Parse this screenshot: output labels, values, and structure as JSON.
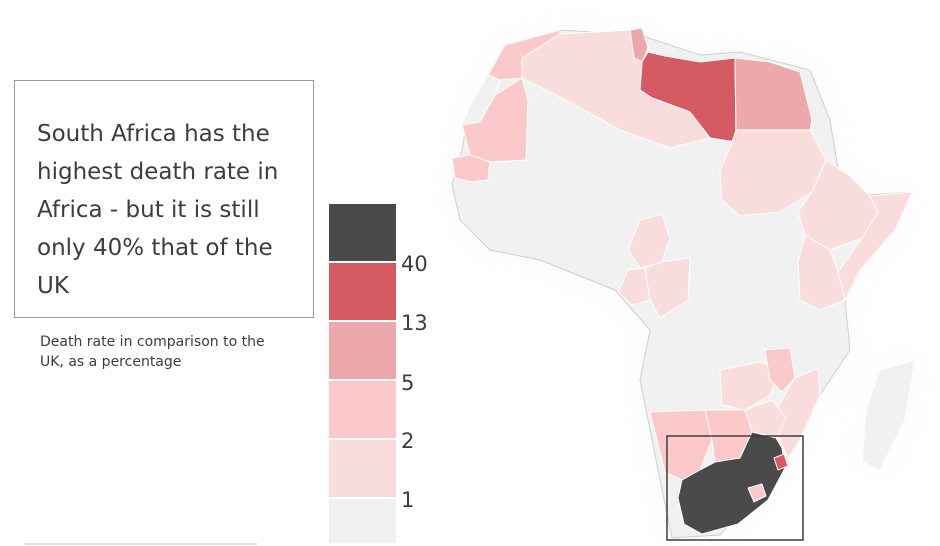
{
  "headline": "South Africa has the highest death rate in Africa - but it is still only 40% that of the UK",
  "subtitle": "Death rate in comparison to the UK, as a percentage",
  "legend": {
    "thresholds": [
      "40",
      "13",
      "5",
      "2",
      "1"
    ],
    "colors": [
      "#4a4a4a",
      "#d65a62",
      "#eca8aa",
      "#fbc9ca",
      "#f9dcdc",
      "#f1f1f1"
    ]
  },
  "map": {
    "countries": [
      {
        "name": "Tunisia",
        "tier": 2
      },
      {
        "name": "Libya",
        "tier": 1
      },
      {
        "name": "Egypt",
        "tier": 2
      },
      {
        "name": "Algeria",
        "tier": 4
      },
      {
        "name": "Morocco",
        "tier": 3
      },
      {
        "name": "Western Sahara",
        "tier": 5
      },
      {
        "name": "Mauritania",
        "tier": 3
      },
      {
        "name": "Senegal",
        "tier": 3
      },
      {
        "name": "Sudan",
        "tier": 4
      },
      {
        "name": "Ethiopia",
        "tier": 4
      },
      {
        "name": "Somalia",
        "tier": 4
      },
      {
        "name": "Cameroon",
        "tier": 4
      },
      {
        "name": "Gabon",
        "tier": 4
      },
      {
        "name": "Congo",
        "tier": 4
      },
      {
        "name": "Kenya",
        "tier": 4
      },
      {
        "name": "Zambia",
        "tier": 4
      },
      {
        "name": "Zimbabwe",
        "tier": 4
      },
      {
        "name": "Mozambique",
        "tier": 4
      },
      {
        "name": "Malawi",
        "tier": 3
      },
      {
        "name": "Namibia",
        "tier": 3
      },
      {
        "name": "Botswana",
        "tier": 3
      },
      {
        "name": "South Africa",
        "tier": 0
      },
      {
        "name": "Eswatini",
        "tier": 1
      },
      {
        "name": "Lesotho",
        "tier": 3
      },
      {
        "name": "Madagascar",
        "tier": 5
      }
    ],
    "highlighted_country": "South Africa"
  }
}
